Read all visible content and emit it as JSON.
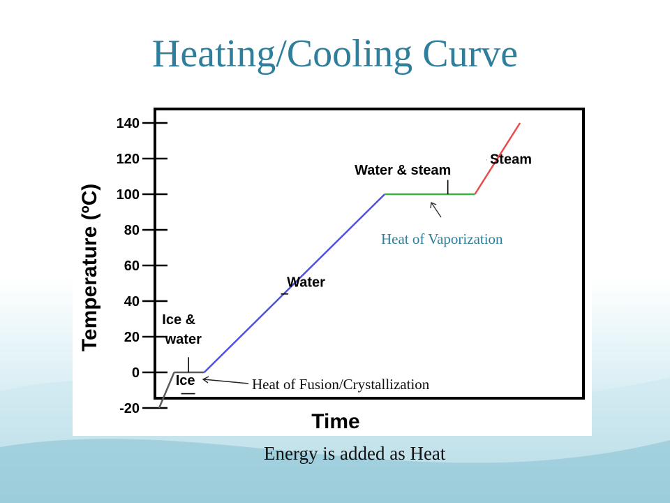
{
  "slide": {
    "title": "Heating/Cooling Curve",
    "caption": "Energy is added as Heat",
    "callouts": {
      "vaporization": "Heat of Vaporization",
      "fusion": "Heat of Fusion/Crystallization"
    }
  },
  "colors": {
    "title": "#2e7e9c",
    "ice": "#5a5a5a",
    "ice_water": "#5a5a5a",
    "water": "#4f4fe0",
    "water_steam": "#3cb043",
    "steam": "#e84c4c"
  },
  "chart_data": {
    "type": "line",
    "xlabel": "Time",
    "ylabel": "Temperature (ºC)",
    "ylim": [
      -20,
      145
    ],
    "y_ticks": [
      "-20",
      "0",
      "20",
      "40",
      "60",
      "80",
      "100",
      "120",
      "140"
    ],
    "y_tick_values": [
      -20,
      0,
      20,
      40,
      60,
      80,
      100,
      120,
      140
    ],
    "x_ticks_shown": false,
    "grid": false,
    "legend": "none",
    "series": [
      {
        "name": "Ice",
        "color_key": "ice",
        "points": [
          [
            0,
            -20
          ],
          [
            1,
            0
          ]
        ]
      },
      {
        "name": "Ice & water",
        "color_key": "ice_water",
        "points": [
          [
            1,
            0
          ],
          [
            3,
            0
          ]
        ]
      },
      {
        "name": "Water",
        "color_key": "water",
        "points": [
          [
            3,
            0
          ],
          [
            15,
            100
          ]
        ]
      },
      {
        "name": "Water & steam",
        "color_key": "water_steam",
        "points": [
          [
            15,
            100
          ],
          [
            21,
            100
          ]
        ]
      },
      {
        "name": "Steam",
        "color_key": "steam",
        "points": [
          [
            21,
            100
          ],
          [
            24,
            140
          ]
        ]
      }
    ],
    "annotations": [
      {
        "text": "Ice",
        "point": [
          1.1,
          -7
        ]
      },
      {
        "text": "Ice &",
        "point": [
          0.2,
          27
        ]
      },
      {
        "text": "water",
        "point": [
          0.4,
          16
        ]
      },
      {
        "text": "Water",
        "point": [
          8.5,
          48
        ]
      },
      {
        "text": "Water & steam",
        "point": [
          13,
          111
        ]
      },
      {
        "text": "Steam",
        "point": [
          22,
          117
        ]
      }
    ]
  }
}
